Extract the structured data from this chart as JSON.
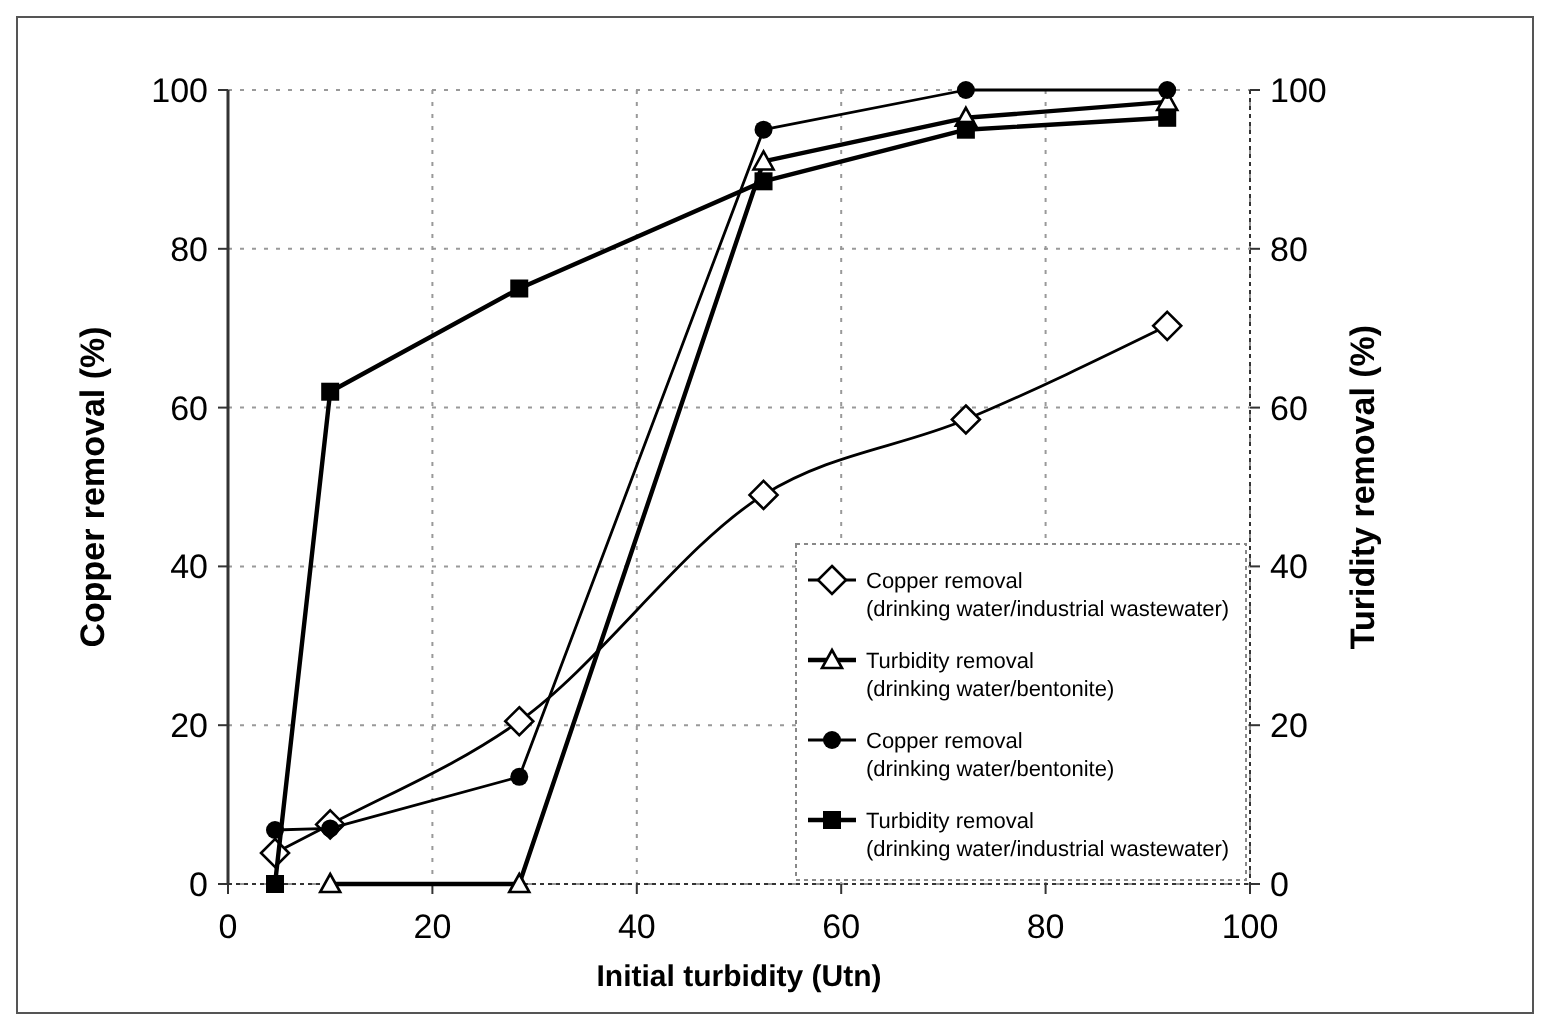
{
  "chart_data": {
    "type": "line",
    "xlabel": "Initial turbidity (Utn)",
    "ylabel": "Copper removal (%)",
    "y2label": "Turidity removal (%)",
    "xlim": [
      0,
      100
    ],
    "xticks": [
      0,
      20,
      40,
      60,
      80,
      100
    ],
    "ylim": [
      0,
      100
    ],
    "yticks": [
      0,
      20,
      40,
      60,
      80,
      100
    ],
    "y2lim": [
      0,
      100
    ],
    "y2ticks": [
      0,
      20,
      40,
      60,
      80,
      100
    ],
    "grid": true,
    "legend": "bottom right",
    "series": [
      {
        "name": "Copper removal (drinking water/industrial wastewater)",
        "color": "#000000",
        "marker": "diamond",
        "x": [
          4.6,
          10,
          28.5,
          52.4,
          72.2,
          91.9
        ],
        "values": [
          3.9,
          7.5,
          20.5,
          49,
          58.5,
          70.3
        ]
      },
      {
        "name": "Turbidity removal (drinking water/bentonite)",
        "color": "#000000",
        "marker": "triangle",
        "axis": "y2",
        "x": [
          10,
          28.5,
          52.4,
          72.2,
          91.9
        ],
        "values": [
          0,
          0,
          91,
          96.5,
          98.5
        ]
      },
      {
        "name": "Copper removal (drinking water/bentonite)",
        "color": "#000000",
        "marker": "circle",
        "x": [
          4.6,
          10,
          28.5,
          52.4,
          72.2,
          91.9
        ],
        "values": [
          6.8,
          7,
          13.5,
          95,
          100,
          100
        ]
      },
      {
        "name": "Turbidity removal (drinking water/industrial wastewater)",
        "color": "#000000",
        "marker": "square",
        "axis": "y2",
        "x": [
          4.6,
          10,
          28.5,
          52.4,
          72.2,
          91.9
        ],
        "values": [
          0,
          62,
          75,
          88.5,
          95,
          96.5
        ]
      }
    ]
  }
}
